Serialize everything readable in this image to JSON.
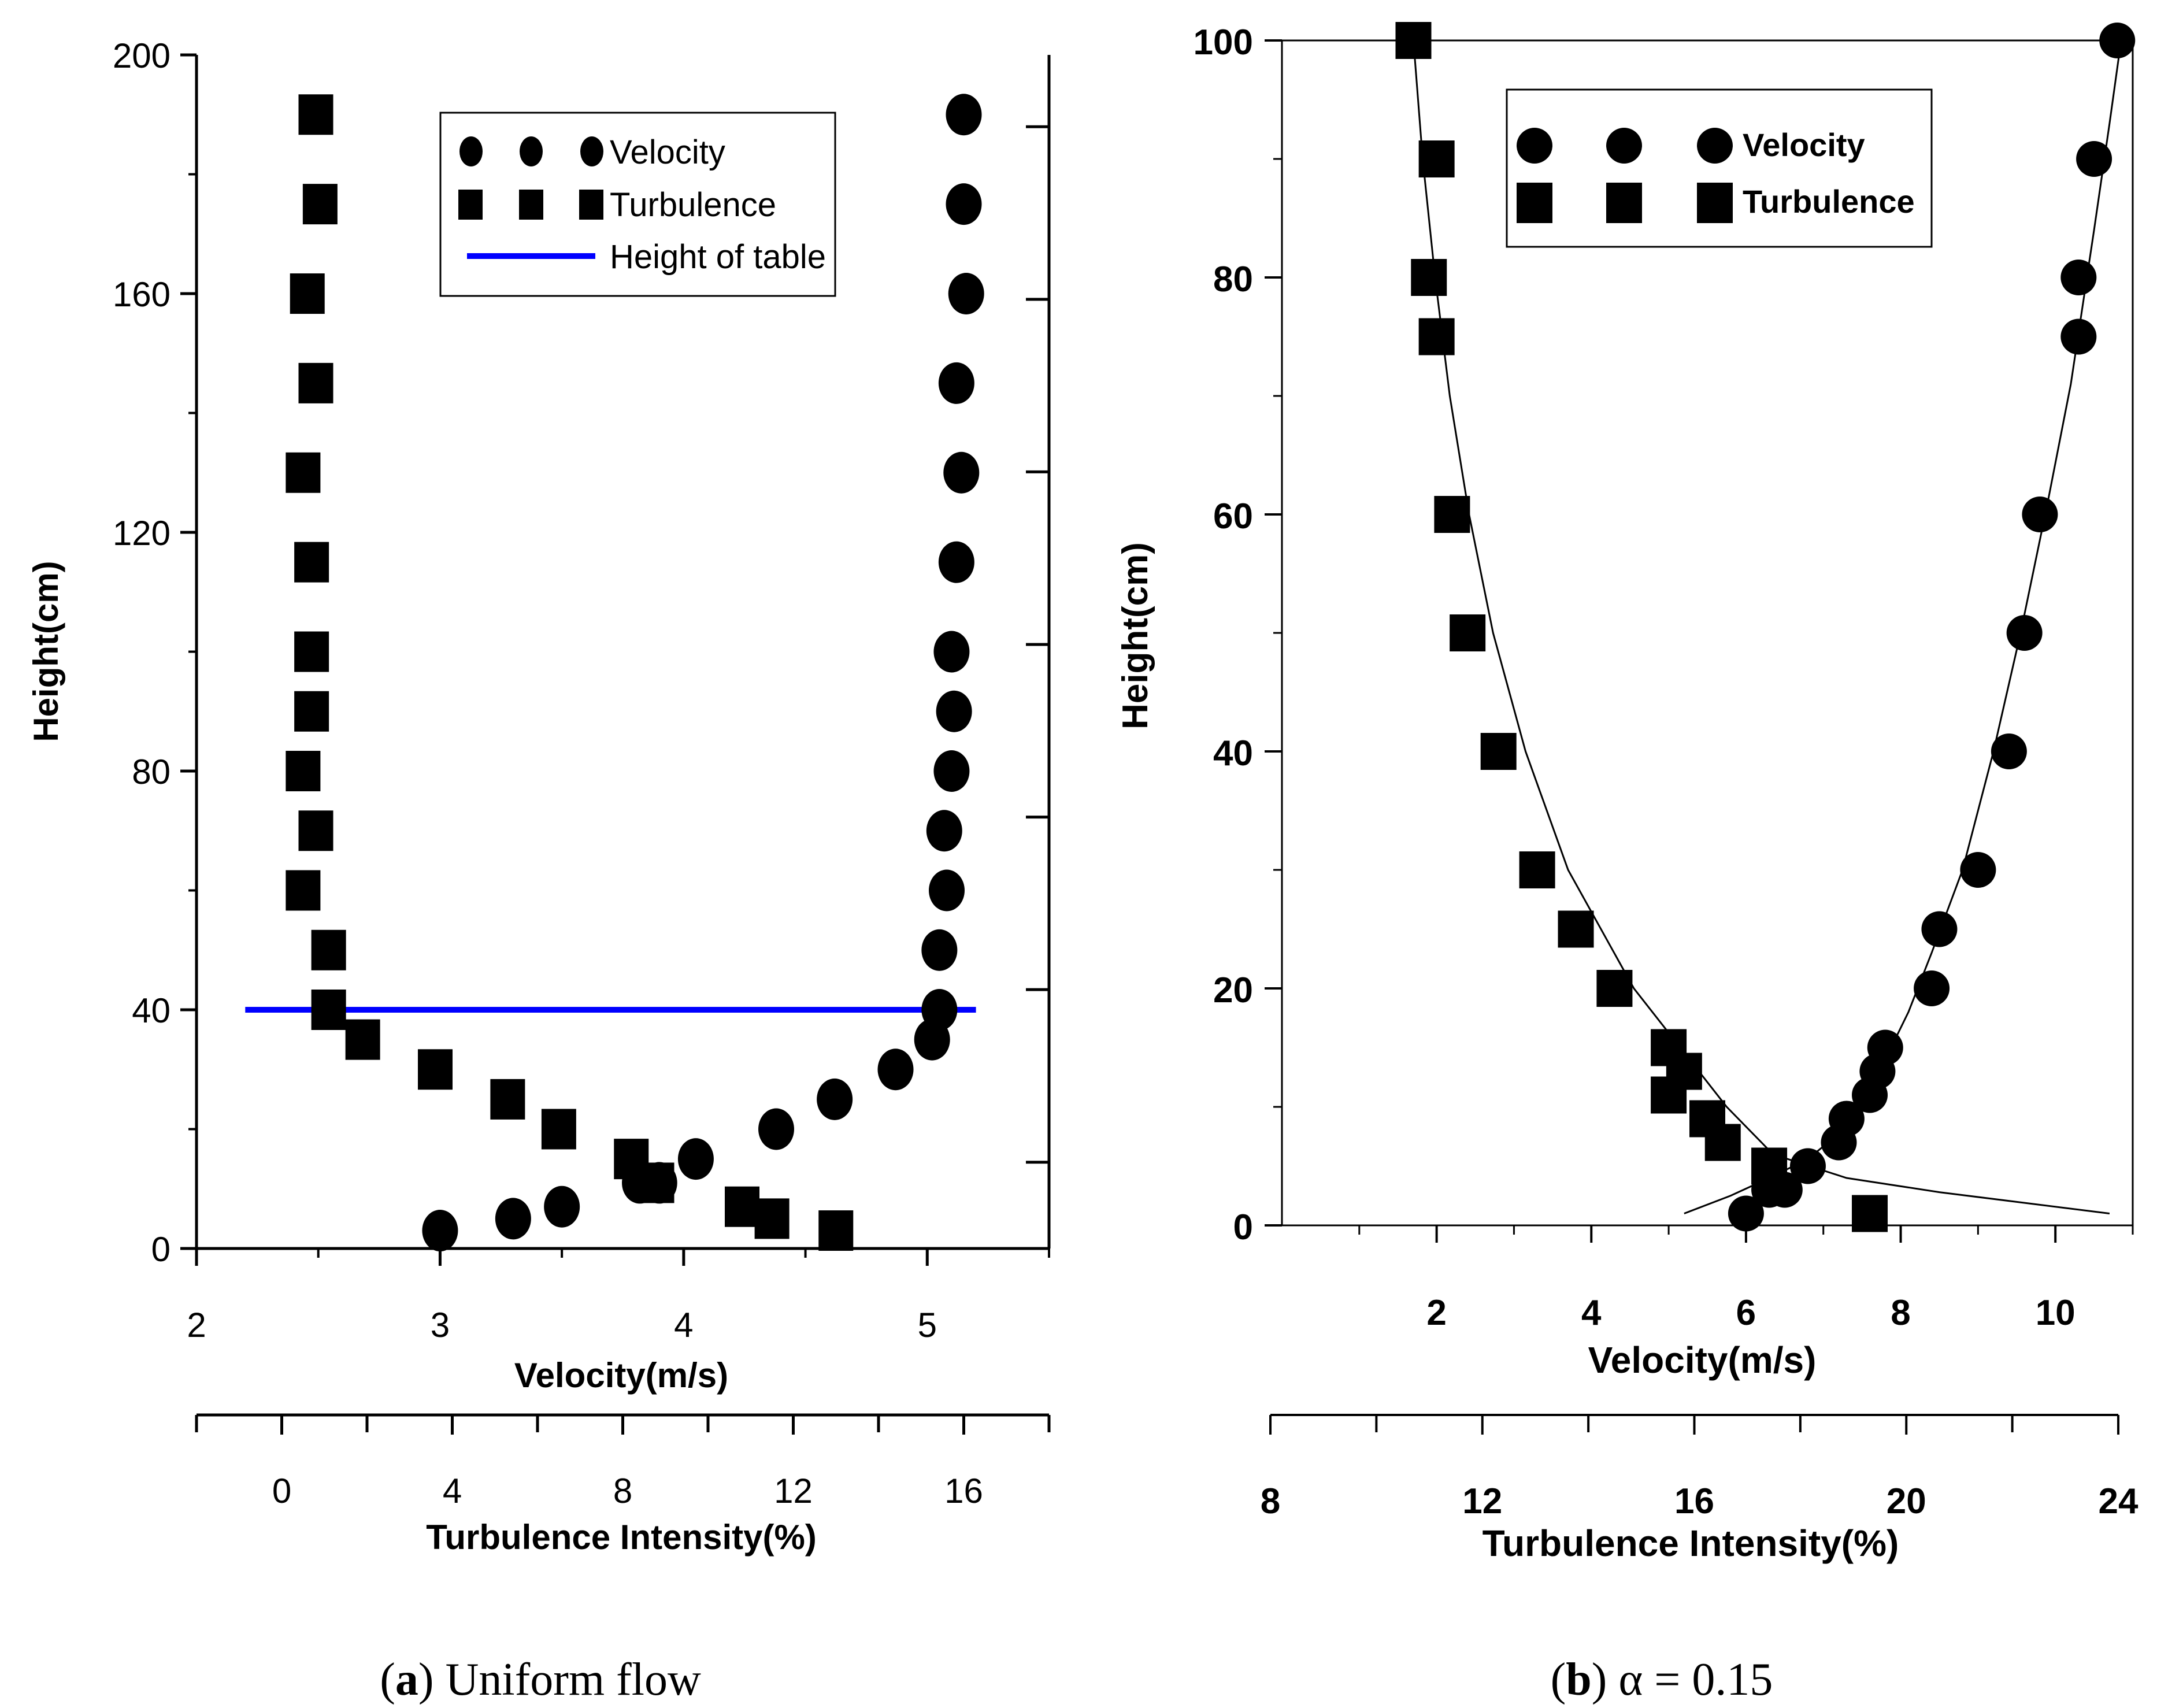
{
  "chart_data": [
    {
      "type": "scatter",
      "panel_letter": "a",
      "caption": "Uniform flow",
      "xlabel": "Velocity(m/s)",
      "x2label": "Turbulence Intensity(%)",
      "ylabel": "Height(cm)",
      "xlim": [
        2,
        5.5
      ],
      "x2lim": [
        -2,
        18
      ],
      "ylim": [
        0,
        200
      ],
      "xticks": [
        "2",
        "3",
        "4",
        "5"
      ],
      "x2ticks": [
        "0",
        "4",
        "8",
        "12",
        "16"
      ],
      "yticks": [
        "0",
        "40",
        "80",
        "120",
        "160",
        "200"
      ],
      "legend": {
        "position": "top-center",
        "entries": [
          "Velocity",
          "Turbulence",
          "Height of table"
        ]
      },
      "colors": {
        "height_line": "#0000ff",
        "markers": "#000000"
      },
      "series": [
        {
          "name": "Velocity",
          "marker": "circle",
          "axis": "bottom",
          "points": [
            [
              3.0,
              3
            ],
            [
              3.3,
              5
            ],
            [
              3.5,
              7
            ],
            [
              3.82,
              11
            ],
            [
              3.9,
              11
            ],
            [
              4.05,
              15
            ],
            [
              4.38,
              20
            ],
            [
              4.62,
              25
            ],
            [
              4.87,
              30
            ],
            [
              5.02,
              35
            ],
            [
              5.05,
              40
            ],
            [
              5.05,
              50
            ],
            [
              5.08,
              60
            ],
            [
              5.07,
              70
            ],
            [
              5.1,
              80
            ],
            [
              5.11,
              90
            ],
            [
              5.1,
              100
            ],
            [
              5.12,
              115
            ],
            [
              5.14,
              130
            ],
            [
              5.12,
              145
            ],
            [
              5.16,
              160
            ],
            [
              5.15,
              175
            ],
            [
              5.15,
              190
            ]
          ]
        },
        {
          "name": "Turbulence",
          "marker": "square",
          "axis": "top",
          "points": [
            [
              13.0,
              3
            ],
            [
              11.5,
              5
            ],
            [
              10.8,
              7
            ],
            [
              8.8,
              11
            ],
            [
              8.2,
              15
            ],
            [
              6.5,
              20
            ],
            [
              5.3,
              25
            ],
            [
              3.6,
              30
            ],
            [
              1.9,
              35
            ],
            [
              1.1,
              40
            ],
            [
              1.1,
              50
            ],
            [
              0.5,
              60
            ],
            [
              0.8,
              70
            ],
            [
              0.5,
              80
            ],
            [
              0.7,
              90
            ],
            [
              0.7,
              100
            ],
            [
              0.7,
              115
            ],
            [
              0.5,
              130
            ],
            [
              0.8,
              145
            ],
            [
              0.6,
              160
            ],
            [
              0.9,
              175
            ],
            [
              0.8,
              190
            ]
          ]
        },
        {
          "name": "Height of table",
          "type": "line",
          "axis": "bottom",
          "points": [
            [
              2.2,
              40
            ],
            [
              5.2,
              40
            ]
          ]
        }
      ]
    },
    {
      "type": "scatter",
      "panel_letter": "b",
      "caption": "α = 0.15",
      "xlabel": "Velocity(m/s)",
      "x2label": "Turbulence Intensity(%)",
      "ylabel": "Height(cm)",
      "xlim": [
        0,
        11
      ],
      "x2lim": [
        8,
        24
      ],
      "ylim": [
        0,
        100
      ],
      "xticks": [
        "2",
        "4",
        "6",
        "8",
        "10"
      ],
      "x2ticks": [
        "8",
        "12",
        "16",
        "20",
        "24"
      ],
      "yticks": [
        "0",
        "20",
        "40",
        "60",
        "80",
        "100"
      ],
      "legend": {
        "position": "top-center",
        "entries": [
          "Velocity",
          "Turbulence"
        ]
      },
      "colors": {
        "fit_lines": "#000000",
        "markers": "#000000"
      },
      "series": [
        {
          "name": "Velocity",
          "marker": "circle",
          "axis": "bottom",
          "points": [
            [
              6.0,
              1
            ],
            [
              6.3,
              3
            ],
            [
              6.5,
              3
            ],
            [
              6.8,
              5
            ],
            [
              7.2,
              7
            ],
            [
              7.3,
              9
            ],
            [
              7.6,
              11
            ],
            [
              7.7,
              13
            ],
            [
              7.8,
              15
            ],
            [
              8.4,
              20
            ],
            [
              8.5,
              25
            ],
            [
              9.0,
              30
            ],
            [
              9.4,
              40
            ],
            [
              9.6,
              50
            ],
            [
              9.8,
              60
            ],
            [
              10.3,
              75
            ],
            [
              10.3,
              80
            ],
            [
              10.5,
              90
            ],
            [
              10.8,
              100
            ]
          ]
        },
        {
          "name": "Turbulence",
          "marker": "square",
          "axis": "bottom",
          "points": [
            [
              7.6,
              1
            ],
            [
              6.3,
              5
            ],
            [
              5.7,
              7
            ],
            [
              5.5,
              9
            ],
            [
              5.0,
              11
            ],
            [
              5.2,
              13
            ],
            [
              5.0,
              15
            ],
            [
              4.3,
              20
            ],
            [
              3.8,
              25
            ],
            [
              3.3,
              30
            ],
            [
              2.8,
              40
            ],
            [
              2.4,
              50
            ],
            [
              2.2,
              60
            ],
            [
              2.0,
              75
            ],
            [
              1.9,
              80
            ],
            [
              2.0,
              90
            ],
            [
              1.7,
              100
            ]
          ]
        }
      ],
      "fit_curves": [
        {
          "axis": "bottom",
          "points": [
            [
              5.2,
              1
            ],
            [
              5.8,
              2.5
            ],
            [
              6.3,
              4
            ],
            [
              6.8,
              5.6
            ],
            [
              7.1,
              7.2
            ],
            [
              7.5,
              10
            ],
            [
              7.8,
              14
            ],
            [
              8.1,
              18
            ],
            [
              8.4,
              23
            ],
            [
              8.8,
              30
            ],
            [
              9.2,
              40
            ],
            [
              9.55,
              50
            ],
            [
              9.9,
              61
            ],
            [
              10.2,
              71
            ],
            [
              10.5,
              84
            ],
            [
              10.7,
              93
            ],
            [
              10.85,
              100
            ]
          ]
        },
        {
          "axis": "bottom",
          "points": [
            [
              1.7,
              100
            ],
            [
              1.82,
              90
            ],
            [
              1.98,
              80
            ],
            [
              2.17,
              70
            ],
            [
              2.42,
              60
            ],
            [
              2.73,
              50
            ],
            [
              3.15,
              40
            ],
            [
              3.7,
              30
            ],
            [
              4.55,
              20
            ],
            [
              5.15,
              15
            ],
            [
              5.75,
              10
            ],
            [
              6.35,
              6
            ],
            [
              7.3,
              4
            ],
            [
              8.5,
              2.8
            ],
            [
              10.7,
              1
            ]
          ]
        }
      ]
    }
  ]
}
